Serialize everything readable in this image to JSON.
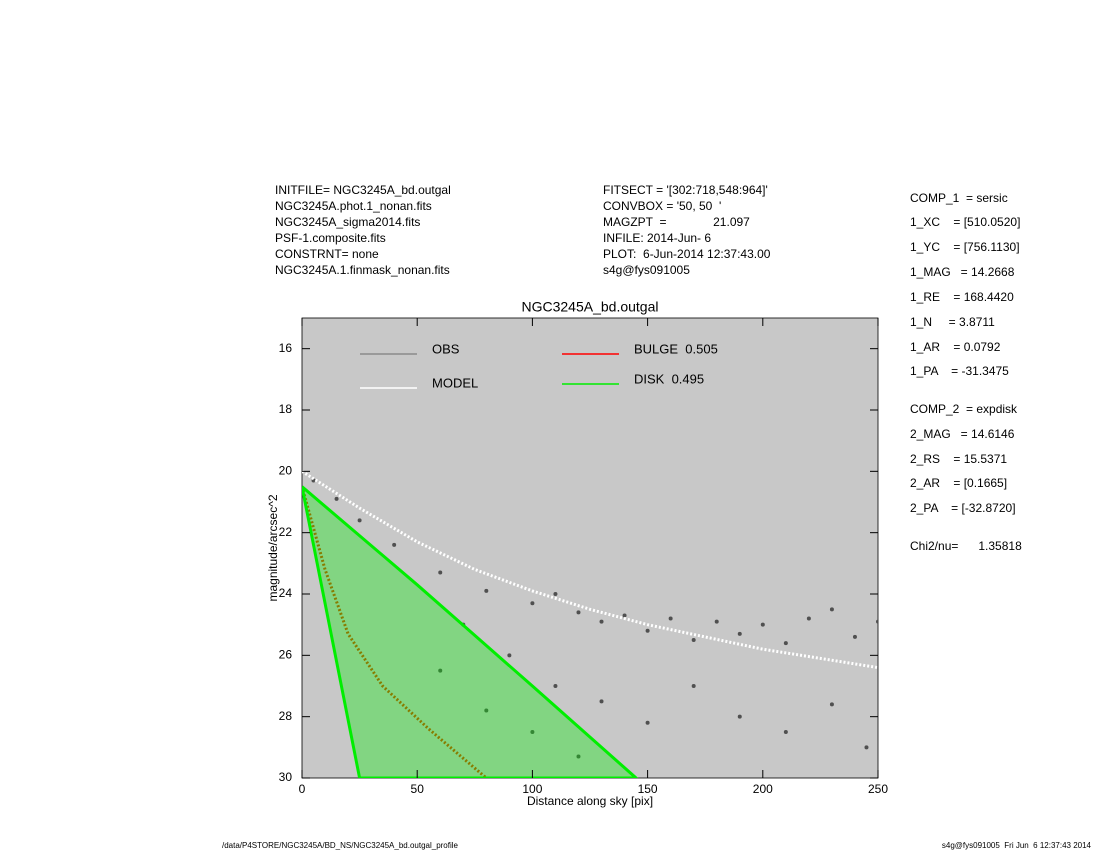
{
  "chart_data": {
    "type": "scatter",
    "title": "NGC3245A_bd.outgal",
    "x_label": "Distance along sky [pix]",
    "y_label": "magnitude/arcsec^2",
    "xlim": [
      0,
      250
    ],
    "xticks": [
      0,
      50,
      100,
      150,
      200,
      250
    ],
    "ylim": [
      15,
      30
    ],
    "y_inverted": true,
    "yticks": [
      16,
      18,
      20,
      22,
      24,
      26,
      28,
      30
    ],
    "background": "#c8c8c8",
    "series": [
      {
        "name": "OBS",
        "color": "#8a8a8a",
        "point_color": "#505050",
        "style": "dots",
        "x": [
          5,
          15,
          25,
          40,
          60,
          80,
          100,
          110,
          120,
          130,
          140,
          150,
          160,
          170,
          180,
          190,
          200,
          210,
          220,
          230,
          240,
          250,
          70,
          90,
          110,
          130,
          150,
          170,
          190,
          210,
          230,
          245,
          60,
          80,
          100,
          120
        ],
        "values": [
          20.3,
          20.9,
          21.6,
          22.4,
          23.3,
          23.9,
          24.3,
          24.0,
          24.6,
          24.9,
          24.7,
          25.2,
          24.8,
          25.5,
          24.9,
          25.3,
          25.0,
          25.6,
          24.8,
          24.5,
          25.4,
          24.9,
          25.0,
          26.0,
          27.0,
          27.5,
          28.2,
          27.0,
          28.0,
          28.5,
          27.6,
          29.0,
          26.5,
          27.8,
          28.5,
          29.3
        ]
      },
      {
        "name": "MODEL",
        "color": "#ffffff",
        "style": "line",
        "x": [
          0,
          25,
          50,
          75,
          100,
          125,
          150,
          175,
          200,
          225,
          250
        ],
        "values": [
          20.0,
          21.2,
          22.3,
          23.2,
          23.9,
          24.5,
          25.0,
          25.4,
          25.8,
          26.1,
          26.4
        ]
      },
      {
        "name": "BULGE  0.505",
        "color": "#ff0000",
        "point_color": "#d04000",
        "style": "line",
        "x": [
          0,
          10,
          20,
          35,
          55,
          80
        ],
        "values": [
          20.5,
          23.2,
          25.3,
          27.0,
          28.4,
          30.0
        ]
      },
      {
        "name": "DISK  0.495",
        "color": "#00ee00",
        "style": "area",
        "x": [
          0,
          50,
          100,
          145,
          25,
          0
        ],
        "values": [
          20.5,
          23.7,
          27.0,
          30.0,
          30.0,
          20.5
        ]
      }
    ]
  },
  "info_left": [
    "INITFILE= NGC3245A_bd.outgal",
    "NGC3245A.phot.1_nonan.fits",
    "NGC3245A_sigma2014.fits",
    "PSF-1.composite.fits",
    "CONSTRNT= none",
    "NGC3245A.1.finmask_nonan.fits"
  ],
  "info_mid": [
    "FITSECT = '[302:718,548:964]'",
    "CONVBOX = '50, 50  '",
    "MAGZPT  =              21.097",
    "INFILE: 2014-Jun- 6",
    "PLOT:  6-Jun-2014 12:37:43.00",
    "s4g@fys091005"
  ],
  "info_right": [
    "COMP_1  = sersic",
    "1_XC    = [510.0520]",
    "1_YC    = [756.1130]",
    "1_MAG   = 14.2668",
    "1_RE    = 168.4420",
    "1_N     = 3.8711",
    "1_AR    = 0.0792",
    "1_PA    = -31.3475",
    "COMP_2  = expdisk",
    "2_MAG   = 14.6146",
    "2_RS    = 15.5371",
    "2_AR    = [0.1665]",
    "2_PA    = [-32.8720]",
    "Chi2/nu=      1.35818"
  ],
  "footer_left": "/data/P4STORE/NGC3245A/BD_NS/NGC3245A_bd.outgal_profile",
  "footer_right": "s4g@fys091005  Fri Jun  6 12:37:43 2014"
}
